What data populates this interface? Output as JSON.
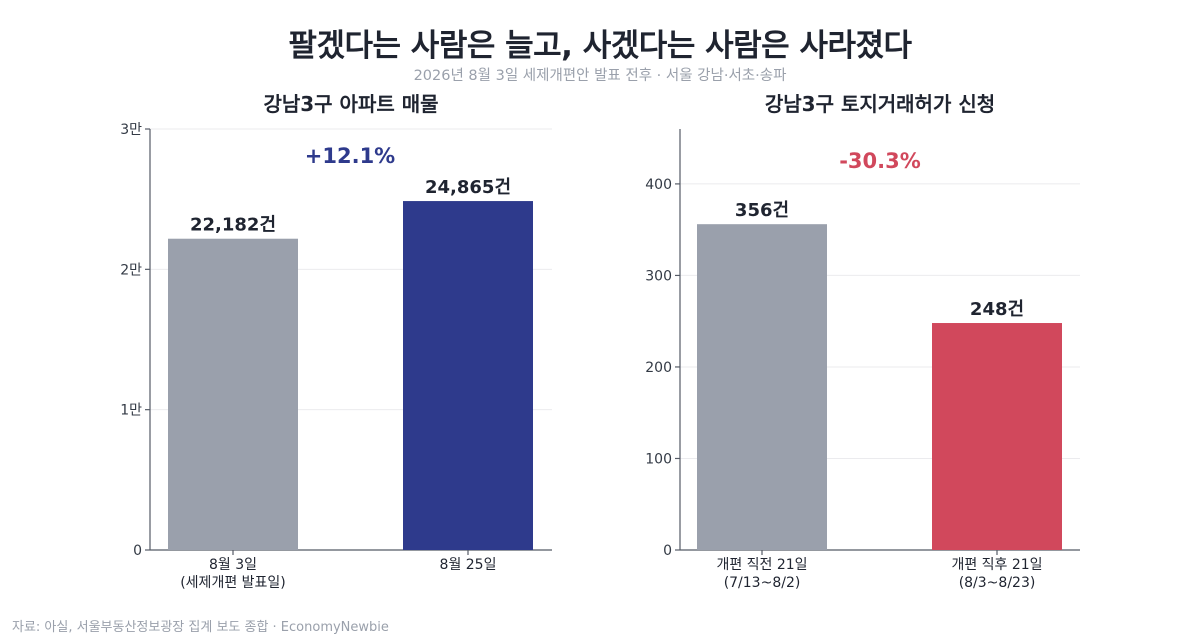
{
  "title": "팔겠다는 사람은 늘고, 사겠다는 사람은 사라졌다",
  "subtitle": "2026년 8월 3일 세제개편안 발표 전후 · 서울 강남·서초·송파",
  "footer": "자료: 아실, 서울부동산정보광장 집계 보도 종합 · EconomyNewbie",
  "colors": {
    "gray_bar": "#9aa0ac",
    "navy_bar": "#2e3a8c",
    "red_bar": "#d1485c",
    "navy_text": "#2e3a8c",
    "red_text": "#d1485c"
  },
  "chart_data": [
    {
      "type": "bar",
      "title": "강남3구 아파트 매물",
      "categories": [
        [
          "8월 3일",
          "(세제개편 발표일)"
        ],
        [
          "8월 25일"
        ]
      ],
      "values": [
        22182,
        24865
      ],
      "value_labels": [
        "22,182건",
        "24,865건"
      ],
      "bar_colors": [
        "#9aa0ac",
        "#2e3a8c"
      ],
      "ylim": [
        0,
        30000
      ],
      "yticks": [
        0,
        10000,
        20000,
        30000
      ],
      "ytick_labels": [
        "0",
        "1만",
        "2만",
        "3만"
      ],
      "change_label": "+12.1%",
      "change_color": "#2e3a8c",
      "grid": true
    },
    {
      "type": "bar",
      "title": "강남3구 토지거래허가 신청",
      "categories": [
        [
          "개편 직전 21일",
          "(7/13~8/2)"
        ],
        [
          "개편 직후 21일",
          "(8/3~8/23)"
        ]
      ],
      "values": [
        356,
        248
      ],
      "value_labels": [
        "356건",
        "248건"
      ],
      "bar_colors": [
        "#9aa0ac",
        "#d1485c"
      ],
      "ylim": [
        0,
        460
      ],
      "yticks": [
        0,
        100,
        200,
        300,
        400
      ],
      "ytick_labels": [
        "0",
        "100",
        "200",
        "300",
        "400"
      ],
      "change_label": "-30.3%",
      "change_color": "#d1485c",
      "grid": true
    }
  ]
}
